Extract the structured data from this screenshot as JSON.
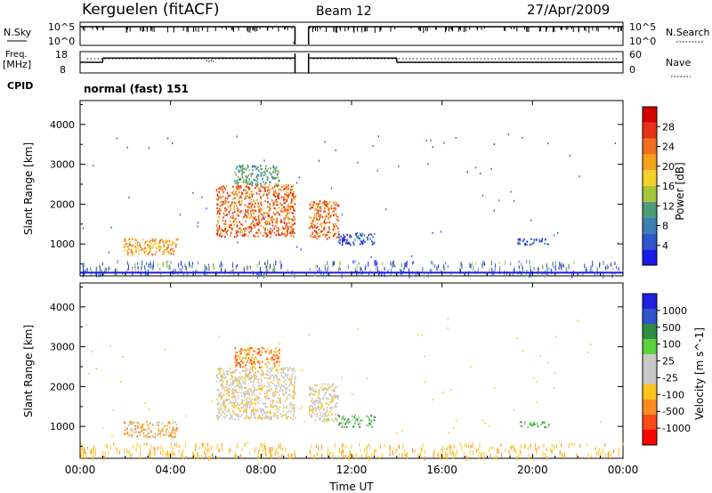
{
  "header": {
    "station": "Kerguelen (fitACF)",
    "beam": "Beam 12",
    "date": "27/Apr/2009"
  },
  "left_labels": {
    "nsky": "N.Sky",
    "freq_top": "Freq.",
    "freq_unit": "[MHz]",
    "cpid": "CPID"
  },
  "right_labels": {
    "nsearch": "N.Search",
    "nave": "Nave"
  },
  "cpid_text": "normal (fast) 151",
  "colors": {
    "power": [
      "#1a1ae6",
      "#2e55c9",
      "#3f7fb4",
      "#4f9a78",
      "#a8c43c",
      "#f5cf2a",
      "#f5a21a",
      "#f07020",
      "#e62f17",
      "#d40000"
    ],
    "velocity": [
      "#ff0000",
      "#ff4a1a",
      "#ff8c1e",
      "#ffc21e",
      "#c8c8c8",
      "#c8c8c8",
      "#5ad23c",
      "#2e8e44",
      "#2e55c9",
      "#2020e0"
    ]
  },
  "chart_data": [
    {
      "type": "line",
      "name": "nsky-nsearch",
      "ylabel_left": "N.Sky",
      "ylabel_right": "N.Search",
      "y_ticks_left": [
        "10^5",
        "10^0"
      ],
      "y_ticks_right": [
        "10^5",
        "10^0"
      ],
      "gap_hours": [
        9.5,
        10.1
      ]
    },
    {
      "type": "line",
      "name": "freq-nave",
      "ylabel_left": "Freq. [MHz]",
      "ylabel_right": "Nave",
      "y_ticks_left": [
        "18",
        "8"
      ],
      "y_ticks_right": [
        "60",
        "0"
      ],
      "freq_steps": [
        {
          "from": 0,
          "to": 1.0,
          "value": 13
        },
        {
          "from": 1.0,
          "to": 9.5,
          "value": 15
        },
        {
          "from": 10.1,
          "to": 14.0,
          "value": 15
        },
        {
          "from": 14.0,
          "to": 24,
          "value": 13
        }
      ]
    },
    {
      "type": "heatmap",
      "name": "power",
      "ylabel": "Slant Range [km]",
      "colorbar_label": "Power [dB]",
      "colorbar_ticks": [
        "4",
        "8",
        "12",
        "16",
        "20",
        "24",
        "28"
      ],
      "ylim": [
        200,
        4600
      ],
      "yticks": [
        "1000",
        "2000",
        "3000",
        "4000"
      ],
      "regions": [
        {
          "t0": 1.9,
          "t1": 4.3,
          "r0": 750,
          "r1": 1150,
          "level": 6
        },
        {
          "t0": 6.0,
          "t1": 9.5,
          "r0": 1200,
          "r1": 2500,
          "level": 7
        },
        {
          "t0": 6.8,
          "t1": 8.8,
          "r0": 2500,
          "r1": 3000,
          "level": 3
        },
        {
          "t0": 10.1,
          "t1": 11.4,
          "r0": 1150,
          "r1": 2100,
          "level": 7
        },
        {
          "t0": 11.4,
          "t1": 13.0,
          "r0": 1000,
          "r1": 1300,
          "level": 1
        },
        {
          "t0": 19.3,
          "t1": 20.8,
          "r0": 1000,
          "r1": 1150,
          "level": 1
        }
      ]
    },
    {
      "type": "heatmap",
      "name": "velocity",
      "ylabel": "Slant Range [km]",
      "colorbar_label": "Velocity [m s^-1]",
      "colorbar_ticks": [
        "-1000",
        "-500",
        "-100",
        "-25",
        "25",
        "100",
        "500",
        "1000"
      ],
      "ylim": [
        200,
        4600
      ],
      "yticks": [
        "1000",
        "2000",
        "3000",
        "4000"
      ],
      "regions": [
        {
          "t0": 1.9,
          "t1": 4.3,
          "r0": 750,
          "r1": 1150,
          "level": 3
        },
        {
          "t0": 6.0,
          "t1": 9.5,
          "r0": 1200,
          "r1": 2500,
          "level": 4
        },
        {
          "t0": 6.8,
          "t1": 8.8,
          "r0": 2500,
          "r1": 3000,
          "level": 2
        },
        {
          "t0": 10.1,
          "t1": 11.4,
          "r0": 1150,
          "r1": 2100,
          "level": 4
        },
        {
          "t0": 11.4,
          "t1": 13.0,
          "r0": 1000,
          "r1": 1300,
          "level": 6
        },
        {
          "t0": 19.3,
          "t1": 20.8,
          "r0": 1000,
          "r1": 1150,
          "level": 6
        }
      ]
    }
  ],
  "x_axis": {
    "label": "Time UT",
    "ticks": [
      "00:00",
      "04:00",
      "08:00",
      "12:00",
      "16:00",
      "20:00",
      "00:00"
    ],
    "xlim": [
      0,
      24
    ]
  }
}
